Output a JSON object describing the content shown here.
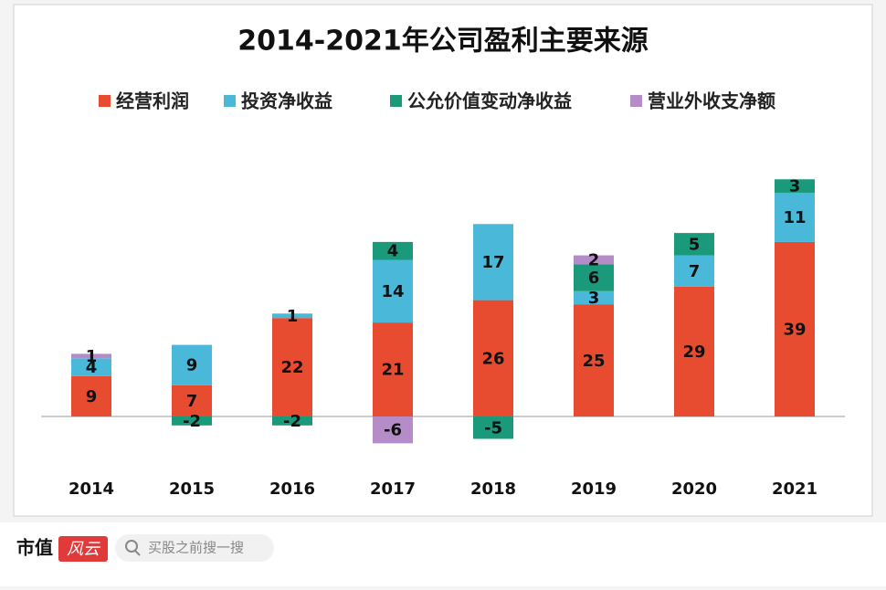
{
  "chart_data": {
    "type": "stacked_bar",
    "title": "2014-2021年公司盈利主要来源",
    "categories": [
      "2014",
      "2015",
      "2016",
      "2017",
      "2018",
      "2019",
      "2020",
      "2021"
    ],
    "series": [
      {
        "name": "经营利润",
        "color": "#e84c30",
        "values": [
          9,
          7,
          22,
          21,
          26,
          25,
          29,
          39
        ]
      },
      {
        "name": "投资净收益",
        "color": "#4ab8d8",
        "values": [
          4,
          9,
          1,
          14,
          17,
          3,
          7,
          11
        ]
      },
      {
        "name": "公允价值变动净收益",
        "color": "#1a9a7a",
        "values": [
          null,
          -2,
          -2,
          4,
          -5,
          6,
          5,
          3
        ]
      },
      {
        "name": "营业外收支净额",
        "color": "#b48cc8",
        "values": [
          1,
          null,
          null,
          -6,
          null,
          2,
          null,
          null
        ]
      }
    ],
    "ylim": [
      -10,
      55
    ],
    "legend": "top"
  },
  "footer": {
    "brand_black": "市值",
    "brand_red": "风云",
    "search": "买股之前搜一搜"
  }
}
